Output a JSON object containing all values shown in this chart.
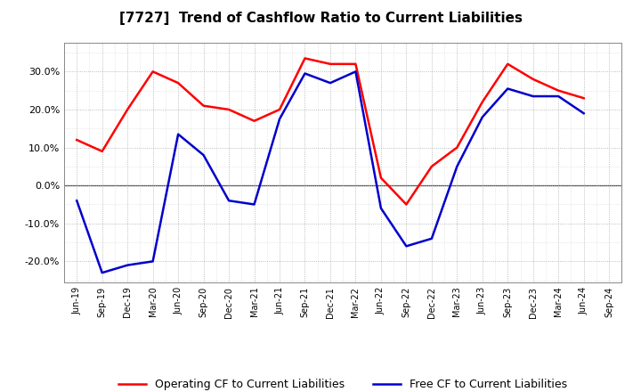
{
  "title": "[7727]  Trend of Cashflow Ratio to Current Liabilities",
  "x_labels": [
    "Jun-19",
    "Sep-19",
    "Dec-19",
    "Mar-20",
    "Jun-20",
    "Sep-20",
    "Dec-20",
    "Mar-21",
    "Jun-21",
    "Sep-21",
    "Dec-21",
    "Mar-22",
    "Jun-22",
    "Sep-22",
    "Dec-22",
    "Mar-23",
    "Jun-23",
    "Sep-23",
    "Dec-23",
    "Mar-24",
    "Jun-24",
    "Sep-24"
  ],
  "operating_cf": [
    0.12,
    0.09,
    0.2,
    0.3,
    0.27,
    0.21,
    0.2,
    0.17,
    0.2,
    0.335,
    0.32,
    0.32,
    0.02,
    -0.05,
    0.05,
    0.1,
    0.22,
    0.32,
    0.28,
    0.25,
    0.23,
    null
  ],
  "free_cf": [
    -0.04,
    -0.23,
    -0.21,
    -0.2,
    0.135,
    0.08,
    -0.04,
    -0.05,
    0.175,
    0.295,
    0.27,
    0.3,
    -0.06,
    -0.16,
    -0.14,
    0.05,
    0.18,
    0.255,
    0.235,
    0.235,
    0.19,
    null
  ],
  "ylim": [
    -0.255,
    0.375
  ],
  "yticks": [
    -0.2,
    -0.1,
    0.0,
    0.1,
    0.2,
    0.3
  ],
  "operating_color": "#ff0000",
  "free_color": "#0000cc",
  "grid_color": "#aaaaaa",
  "bg_color": "#ffffff",
  "legend_operating": "Operating CF to Current Liabilities",
  "legend_free": "Free CF to Current Liabilities"
}
